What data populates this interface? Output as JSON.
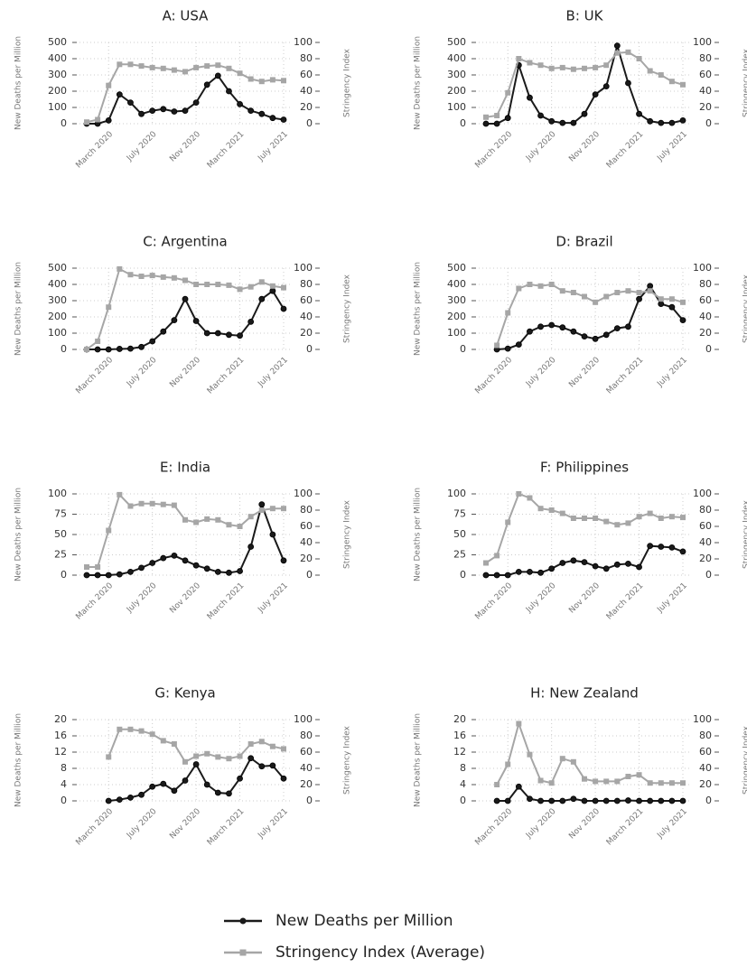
{
  "chart_data": [
    {
      "type": "line",
      "title": "A: USA",
      "y_label": "New Deaths per Million",
      "y2_label": "Stringency Index",
      "categories": [
        null,
        null,
        "March 2020",
        null,
        null,
        null,
        "July 2020",
        null,
        null,
        null,
        "Nov 2020",
        null,
        null,
        null,
        "March 2021",
        null,
        null,
        null,
        "July 2021"
      ],
      "ylim": [
        0,
        500
      ],
      "yticks": [
        0,
        100,
        200,
        300,
        400,
        500
      ],
      "y2lim": [
        0,
        100
      ],
      "y2ticks": [
        0,
        20,
        40,
        60,
        80,
        100
      ],
      "grid": true,
      "series": [
        {
          "name": "New Deaths per Million",
          "color": "#1a1a1a",
          "values": [
            0,
            0,
            20,
            180,
            130,
            60,
            80,
            90,
            75,
            80,
            130,
            240,
            295,
            200,
            120,
            80,
            60,
            35,
            25
          ]
        },
        {
          "name": "Stringency Index (Average)",
          "color": "#a6a6a6",
          "axis": "y2",
          "values": [
            2,
            5,
            47,
            73,
            73,
            71,
            69,
            68,
            66,
            64,
            69,
            71,
            72,
            68,
            62,
            55,
            52,
            54,
            53
          ]
        }
      ]
    },
    {
      "type": "line",
      "title": "B: UK",
      "y_label": "New Deaths per Million",
      "y2_label": "Stringency Index",
      "categories": [
        null,
        null,
        "March 2020",
        null,
        null,
        null,
        "July 2020",
        null,
        null,
        null,
        "Nov 2020",
        null,
        null,
        null,
        "March 2021",
        null,
        null,
        null,
        "July 2021"
      ],
      "ylim": [
        0,
        500
      ],
      "yticks": [
        0,
        100,
        200,
        300,
        400,
        500
      ],
      "y2lim": [
        0,
        100
      ],
      "y2ticks": [
        0,
        20,
        40,
        60,
        80,
        100
      ],
      "grid": true,
      "series": [
        {
          "name": "New Deaths per Million",
          "color": "#1a1a1a",
          "values": [
            0,
            0,
            35,
            360,
            160,
            50,
            15,
            5,
            5,
            60,
            180,
            230,
            480,
            250,
            60,
            15,
            5,
            5,
            20
          ]
        },
        {
          "name": "Stringency Index (Average)",
          "color": "#a6a6a6",
          "axis": "y2",
          "values": [
            8,
            10,
            38,
            80,
            75,
            72,
            68,
            69,
            67,
            68,
            69,
            72,
            87,
            88,
            80,
            65,
            60,
            52,
            48
          ]
        }
      ]
    },
    {
      "type": "line",
      "title": "C: Argentina",
      "y_label": "New Deaths per Million",
      "y2_label": "Stringency Index",
      "categories": [
        null,
        null,
        "March 2020",
        null,
        null,
        null,
        "July 2020",
        null,
        null,
        null,
        "Nov 2020",
        null,
        null,
        null,
        "March 2021",
        null,
        null,
        null,
        "July 2021"
      ],
      "ylim": [
        0,
        500
      ],
      "yticks": [
        0,
        100,
        200,
        300,
        400,
        500
      ],
      "y2lim": [
        0,
        100
      ],
      "y2ticks": [
        0,
        20,
        40,
        60,
        80,
        100
      ],
      "grid": true,
      "series": [
        {
          "name": "New Deaths per Million",
          "color": "#1a1a1a",
          "values": [
            0,
            0,
            0,
            3,
            5,
            15,
            50,
            110,
            180,
            310,
            175,
            100,
            100,
            90,
            85,
            170,
            310,
            360,
            250
          ]
        },
        {
          "name": "Stringency Index (Average)",
          "color": "#a6a6a6",
          "axis": "y2",
          "values": [
            0,
            10,
            52,
            99,
            92,
            90,
            91,
            89,
            88,
            85,
            80,
            80,
            80,
            79,
            74,
            77,
            83,
            78,
            76
          ]
        }
      ]
    },
    {
      "type": "line",
      "title": "D: Brazil",
      "y_label": "New Deaths per Million",
      "y2_label": "Stringency Index",
      "categories": [
        null,
        null,
        "March 2020",
        null,
        null,
        null,
        "July 2020",
        null,
        null,
        null,
        "Nov 2020",
        null,
        null,
        null,
        "March 2021",
        null,
        null,
        null,
        "July 2021"
      ],
      "ylim": [
        0,
        500
      ],
      "yticks": [
        0,
        100,
        200,
        300,
        400,
        500
      ],
      "y2lim": [
        0,
        100
      ],
      "y2ticks": [
        0,
        20,
        40,
        60,
        80,
        100
      ],
      "grid": true,
      "series": [
        {
          "name": "New Deaths per Million",
          "color": "#1a1a1a",
          "values": [
            null,
            0,
            5,
            30,
            110,
            140,
            150,
            135,
            110,
            80,
            65,
            90,
            130,
            140,
            310,
            390,
            280,
            260,
            180
          ]
        },
        {
          "name": "Stringency Index (Average)",
          "color": "#a6a6a6",
          "axis": "y2",
          "values": [
            null,
            5,
            45,
            75,
            80,
            78,
            80,
            72,
            70,
            65,
            58,
            65,
            70,
            72,
            70,
            72,
            62,
            62,
            58
          ]
        }
      ]
    },
    {
      "type": "line",
      "title": "E: India",
      "y_label": "New Deaths per Million",
      "y2_label": "Stringency Index",
      "categories": [
        null,
        null,
        "March 2020",
        null,
        null,
        null,
        "July 2020",
        null,
        null,
        null,
        "Nov 2020",
        null,
        null,
        null,
        "March 2021",
        null,
        null,
        null,
        "July 2021"
      ],
      "ylim": [
        0,
        100
      ],
      "yticks": [
        0,
        25,
        50,
        75,
        100
      ],
      "y2lim": [
        0,
        100
      ],
      "y2ticks": [
        0,
        20,
        40,
        60,
        80,
        100
      ],
      "grid": true,
      "series": [
        {
          "name": "New Deaths per Million",
          "color": "#1a1a1a",
          "values": [
            0,
            0,
            0,
            1,
            4,
            9,
            15,
            21,
            24,
            18,
            12,
            8,
            4,
            3,
            5,
            35,
            87,
            50,
            18
          ]
        },
        {
          "name": "Stringency Index (Average)",
          "color": "#a6a6a6",
          "axis": "y2",
          "values": [
            10,
            10,
            55,
            99,
            85,
            88,
            88,
            87,
            86,
            68,
            65,
            69,
            68,
            62,
            60,
            72,
            80,
            82,
            82
          ]
        }
      ]
    },
    {
      "type": "line",
      "title": "F: Philippines",
      "y_label": "New Deaths per Million",
      "y2_label": "Stringency Index",
      "categories": [
        null,
        null,
        "March 2020",
        null,
        null,
        null,
        "July 2020",
        null,
        null,
        null,
        "Nov 2020",
        null,
        null,
        null,
        "March 2021",
        null,
        null,
        null,
        "July 2021"
      ],
      "ylim": [
        0,
        100
      ],
      "yticks": [
        0,
        25,
        50,
        75,
        100
      ],
      "y2lim": [
        0,
        100
      ],
      "y2ticks": [
        0,
        20,
        40,
        60,
        80,
        100
      ],
      "grid": true,
      "series": [
        {
          "name": "New Deaths per Million",
          "color": "#1a1a1a",
          "values": [
            0,
            0,
            0,
            4,
            4,
            3,
            8,
            15,
            18,
            16,
            11,
            8,
            13,
            14,
            10,
            36,
            35,
            34,
            29
          ]
        },
        {
          "name": "Stringency Index (Average)",
          "color": "#a6a6a6",
          "axis": "y2",
          "values": [
            15,
            24,
            65,
            100,
            95,
            82,
            80,
            76,
            70,
            70,
            70,
            66,
            62,
            64,
            72,
            76,
            70,
            72,
            71
          ]
        }
      ]
    },
    {
      "type": "line",
      "title": "G: Kenya",
      "y_label": "New Deaths per Million",
      "y2_label": "Stringency Index",
      "categories": [
        null,
        null,
        "March 2020",
        null,
        null,
        null,
        "July 2020",
        null,
        null,
        null,
        "Nov 2020",
        null,
        null,
        null,
        "March 2021",
        null,
        null,
        null,
        "July 2021"
      ],
      "ylim": [
        0,
        20
      ],
      "yticks": [
        0,
        4,
        8,
        12,
        16,
        20
      ],
      "y2lim": [
        0,
        100
      ],
      "y2ticks": [
        0,
        20,
        40,
        60,
        80,
        100
      ],
      "grid": true,
      "series": [
        {
          "name": "New Deaths per Million",
          "color": "#1a1a1a",
          "values": [
            null,
            null,
            0,
            0.3,
            0.8,
            1.5,
            3.5,
            4.2,
            2.5,
            5,
            9,
            4,
            2,
            1.8,
            5.5,
            10.5,
            8.5,
            8.7,
            5.5
          ]
        },
        {
          "name": "Stringency Index (Average)",
          "color": "#a6a6a6",
          "axis": "y2",
          "values": [
            null,
            null,
            54,
            88,
            88,
            86,
            82,
            74,
            70,
            48,
            55,
            58,
            54,
            52,
            55,
            70,
            73,
            67,
            64
          ]
        }
      ]
    },
    {
      "type": "line",
      "title": "H: New Zealand",
      "y_label": "New Deaths per Million",
      "y2_label": "Stringency Index",
      "categories": [
        null,
        null,
        "March 2020",
        null,
        null,
        null,
        "July 2020",
        null,
        null,
        null,
        "Nov 2020",
        null,
        null,
        null,
        "March 2021",
        null,
        null,
        null,
        "July 2021"
      ],
      "ylim": [
        0,
        20
      ],
      "yticks": [
        0,
        4,
        8,
        12,
        16,
        20
      ],
      "y2lim": [
        0,
        100
      ],
      "y2ticks": [
        0,
        20,
        40,
        60,
        80,
        100
      ],
      "grid": true,
      "series": [
        {
          "name": "New Deaths per Million",
          "color": "#1a1a1a",
          "values": [
            null,
            0,
            0,
            3.5,
            0.5,
            0,
            0,
            0,
            0.5,
            0,
            0,
            0,
            0,
            0.1,
            0,
            0,
            0,
            0,
            0
          ]
        },
        {
          "name": "Stringency Index (Average)",
          "color": "#a6a6a6",
          "axis": "y2",
          "values": [
            null,
            20,
            45,
            95,
            57,
            25,
            22,
            52,
            48,
            27,
            24,
            24,
            24,
            30,
            32,
            22,
            22,
            22,
            22
          ]
        }
      ]
    }
  ]
}
